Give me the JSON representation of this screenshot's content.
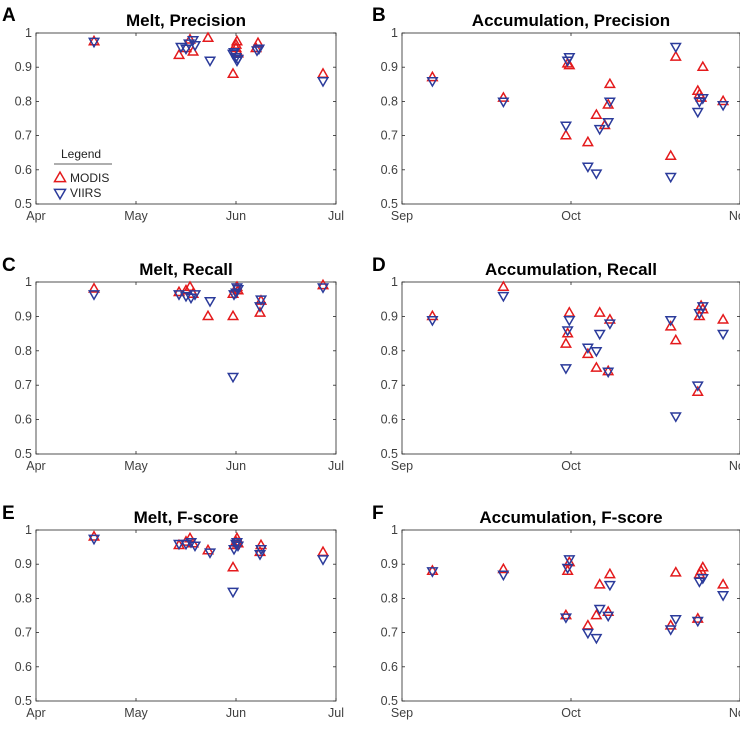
{
  "legend": {
    "title": "Legend",
    "entries": [
      {
        "name": "MODIS",
        "marker": "triangle-up",
        "color": "#e41a1c"
      },
      {
        "name": "VIIRS",
        "marker": "triangle-down",
        "color": "#2b3b9b"
      }
    ]
  },
  "chart_data": [
    {
      "letter": "A",
      "type": "scatter",
      "title": "Melt, Precision",
      "x_ticks": [
        "Apr",
        "May",
        "Jun",
        "Jul"
      ],
      "y_ticks": [
        "0.5",
        "0.6",
        "0.7",
        "0.8",
        "0.9",
        "1"
      ],
      "xlim": [
        0,
        3
      ],
      "ylim": [
        0.5,
        1.0
      ],
      "series": [
        {
          "name": "MODIS",
          "x": [
            0.58,
            1.43,
            1.5,
            1.54,
            1.57,
            1.72,
            1.97,
            2.0,
            2.0,
            2.01,
            2.02,
            2.2,
            2.22,
            2.87
          ],
          "y": [
            0.975,
            0.935,
            0.955,
            0.98,
            0.945,
            0.985,
            0.88,
            0.955,
            0.965,
            0.975,
            0.94,
            0.955,
            0.97,
            0.88
          ]
        },
        {
          "name": "VIIRS",
          "x": [
            0.58,
            1.45,
            1.5,
            1.53,
            1.57,
            1.59,
            1.74,
            1.97,
            1.98,
            2.0,
            2.01,
            2.02,
            2.21,
            2.23,
            2.87
          ],
          "y": [
            0.975,
            0.96,
            0.955,
            0.97,
            0.98,
            0.965,
            0.92,
            0.94,
            0.945,
            0.93,
            0.92,
            0.925,
            0.95,
            0.955,
            0.86
          ]
        }
      ]
    },
    {
      "letter": "B",
      "type": "scatter",
      "title": "Accumulation, Precision",
      "x_ticks": [
        "Sep",
        "Oct",
        "Nov"
      ],
      "y_ticks": [
        "0.5",
        "0.6",
        "0.7",
        "0.8",
        "0.9",
        "1"
      ],
      "xlim": [
        0,
        2
      ],
      "ylim": [
        0.5,
        1.0
      ],
      "series": [
        {
          "name": "MODIS",
          "x": [
            0.18,
            0.6,
            0.97,
            0.98,
            0.99,
            1.1,
            1.15,
            1.2,
            1.22,
            1.23,
            1.59,
            1.62,
            1.75,
            1.76,
            1.77,
            1.78,
            1.9
          ],
          "y": [
            0.87,
            0.81,
            0.7,
            0.91,
            0.905,
            0.68,
            0.76,
            0.73,
            0.79,
            0.85,
            0.64,
            0.93,
            0.83,
            0.82,
            0.81,
            0.9,
            0.8
          ]
        },
        {
          "name": "VIIRS",
          "x": [
            0.18,
            0.6,
            0.97,
            0.98,
            0.99,
            1.1,
            1.15,
            1.17,
            1.22,
            1.23,
            1.59,
            1.62,
            1.75,
            1.76,
            1.78,
            1.9
          ],
          "y": [
            0.86,
            0.8,
            0.73,
            0.92,
            0.93,
            0.61,
            0.59,
            0.72,
            0.74,
            0.8,
            0.58,
            0.96,
            0.77,
            0.8,
            0.81,
            0.79
          ]
        }
      ]
    },
    {
      "letter": "C",
      "type": "scatter",
      "title": "Melt, Recall",
      "x_ticks": [
        "Apr",
        "May",
        "Jun",
        "Jul"
      ],
      "y_ticks": [
        "0.5",
        "0.6",
        "0.7",
        "0.8",
        "0.9",
        "1"
      ],
      "xlim": [
        0,
        3
      ],
      "ylim": [
        0.5,
        1.0
      ],
      "series": [
        {
          "name": "MODIS",
          "x": [
            0.58,
            1.43,
            1.5,
            1.54,
            1.57,
            1.72,
            1.97,
            1.97,
            2.0,
            2.01,
            2.02,
            2.24,
            2.25,
            2.87
          ],
          "y": [
            0.98,
            0.97,
            0.975,
            0.985,
            0.965,
            0.9,
            0.9,
            0.965,
            0.98,
            0.985,
            0.975,
            0.91,
            0.945,
            0.99
          ]
        },
        {
          "name": "VIIRS",
          "x": [
            0.58,
            1.43,
            1.5,
            1.55,
            1.59,
            1.74,
            1.97,
            1.98,
            2.0,
            2.01,
            2.02,
            2.24,
            2.25,
            2.87
          ],
          "y": [
            0.965,
            0.965,
            0.96,
            0.955,
            0.965,
            0.945,
            0.725,
            0.965,
            0.97,
            0.985,
            0.98,
            0.93,
            0.95,
            0.985
          ]
        }
      ]
    },
    {
      "letter": "D",
      "type": "scatter",
      "title": "Accumulation, Recall",
      "x_ticks": [
        "Sep",
        "Oct",
        "Nov"
      ],
      "y_ticks": [
        "0.5",
        "0.6",
        "0.7",
        "0.8",
        "0.9",
        "1"
      ],
      "xlim": [
        0,
        2
      ],
      "ylim": [
        0.5,
        1.0
      ],
      "series": [
        {
          "name": "MODIS",
          "x": [
            0.18,
            0.6,
            0.97,
            0.98,
            0.99,
            1.1,
            1.15,
            1.17,
            1.22,
            1.23,
            1.59,
            1.62,
            1.75,
            1.76,
            1.77,
            1.78,
            1.9
          ],
          "y": [
            0.9,
            0.985,
            0.82,
            0.85,
            0.91,
            0.79,
            0.75,
            0.91,
            0.74,
            0.89,
            0.87,
            0.83,
            0.68,
            0.9,
            0.93,
            0.92,
            0.89
          ]
        },
        {
          "name": "VIIRS",
          "x": [
            0.18,
            0.6,
            0.97,
            0.98,
            0.99,
            1.1,
            1.15,
            1.17,
            1.22,
            1.23,
            1.59,
            1.62,
            1.75,
            1.76,
            1.78,
            1.9
          ],
          "y": [
            0.89,
            0.96,
            0.75,
            0.86,
            0.89,
            0.81,
            0.8,
            0.85,
            0.74,
            0.88,
            0.89,
            0.61,
            0.7,
            0.91,
            0.93,
            0.85
          ]
        }
      ]
    },
    {
      "letter": "E",
      "type": "scatter",
      "title": "Melt, F-score",
      "x_ticks": [
        "Apr",
        "May",
        "Jun",
        "Jul"
      ],
      "y_ticks": [
        "0.5",
        "0.6",
        "0.7",
        "0.8",
        "0.9",
        "1"
      ],
      "xlim": [
        0,
        3
      ],
      "ylim": [
        0.5,
        1.0
      ],
      "series": [
        {
          "name": "MODIS",
          "x": [
            0.58,
            1.43,
            1.5,
            1.54,
            1.57,
            1.72,
            1.97,
            1.98,
            2.0,
            2.01,
            2.02,
            2.24,
            2.25,
            2.87
          ],
          "y": [
            0.98,
            0.955,
            0.965,
            0.975,
            0.96,
            0.94,
            0.89,
            0.955,
            0.965,
            0.975,
            0.96,
            0.935,
            0.955,
            0.935
          ]
        },
        {
          "name": "VIIRS",
          "x": [
            0.58,
            1.43,
            1.5,
            1.55,
            1.59,
            1.74,
            1.97,
            1.98,
            2.0,
            2.01,
            2.02,
            2.24,
            2.25,
            2.87
          ],
          "y": [
            0.975,
            0.96,
            0.96,
            0.965,
            0.955,
            0.935,
            0.82,
            0.945,
            0.96,
            0.965,
            0.955,
            0.93,
            0.945,
            0.915
          ]
        }
      ]
    },
    {
      "letter": "F",
      "type": "scatter",
      "title": "Accumulation, F-score",
      "x_ticks": [
        "Sep",
        "Oct",
        "Nov"
      ],
      "y_ticks": [
        "0.5",
        "0.6",
        "0.7",
        "0.8",
        "0.9",
        "1"
      ],
      "xlim": [
        0,
        2
      ],
      "ylim": [
        0.5,
        1.0
      ],
      "series": [
        {
          "name": "MODIS",
          "x": [
            0.18,
            0.6,
            0.97,
            0.98,
            0.99,
            1.1,
            1.15,
            1.17,
            1.22,
            1.23,
            1.59,
            1.62,
            1.75,
            1.76,
            1.77,
            1.78,
            1.9
          ],
          "y": [
            0.88,
            0.885,
            0.75,
            0.88,
            0.905,
            0.72,
            0.75,
            0.84,
            0.76,
            0.87,
            0.72,
            0.875,
            0.74,
            0.87,
            0.88,
            0.89,
            0.84
          ]
        },
        {
          "name": "VIIRS",
          "x": [
            0.18,
            0.6,
            0.97,
            0.98,
            0.99,
            1.1,
            1.15,
            1.17,
            1.22,
            1.23,
            1.59,
            1.62,
            1.75,
            1.76,
            1.78,
            1.9
          ],
          "y": [
            0.88,
            0.87,
            0.745,
            0.89,
            0.915,
            0.7,
            0.685,
            0.77,
            0.75,
            0.84,
            0.71,
            0.74,
            0.735,
            0.85,
            0.86,
            0.81
          ]
        }
      ]
    }
  ]
}
